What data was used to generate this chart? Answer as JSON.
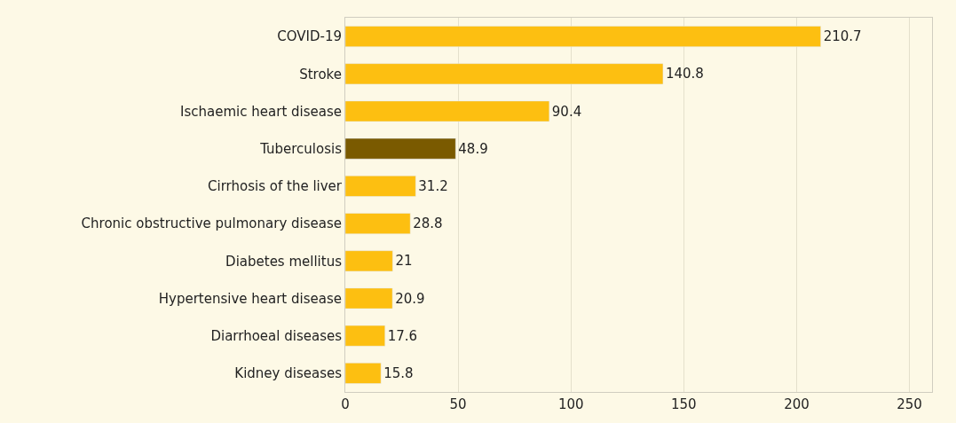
{
  "chart_data": {
    "type": "bar",
    "orientation": "horizontal",
    "categories": [
      "COVID-19",
      "Stroke",
      "Ischaemic heart disease",
      "Tuberculosis",
      "Cirrhosis of the liver",
      "Chronic obstructive pulmonary disease",
      "Diabetes mellitus",
      "Hypertensive heart disease",
      "Diarrhoeal diseases",
      "Kidney diseases"
    ],
    "values": [
      210.7,
      140.8,
      90.4,
      48.9,
      31.2,
      28.8,
      21,
      20.9,
      17.6,
      15.8
    ],
    "colors": [
      "#fdbf11",
      "#fdbf11",
      "#fdbf11",
      "#7a5a00",
      "#fdbf11",
      "#fdbf11",
      "#fdbf11",
      "#fdbf11",
      "#fdbf11",
      "#fdbf11"
    ],
    "xlim": [
      0,
      260
    ],
    "xticks": [
      0,
      50,
      100,
      150,
      200,
      250
    ],
    "grid": "x",
    "data_labels": true,
    "legend": false
  }
}
